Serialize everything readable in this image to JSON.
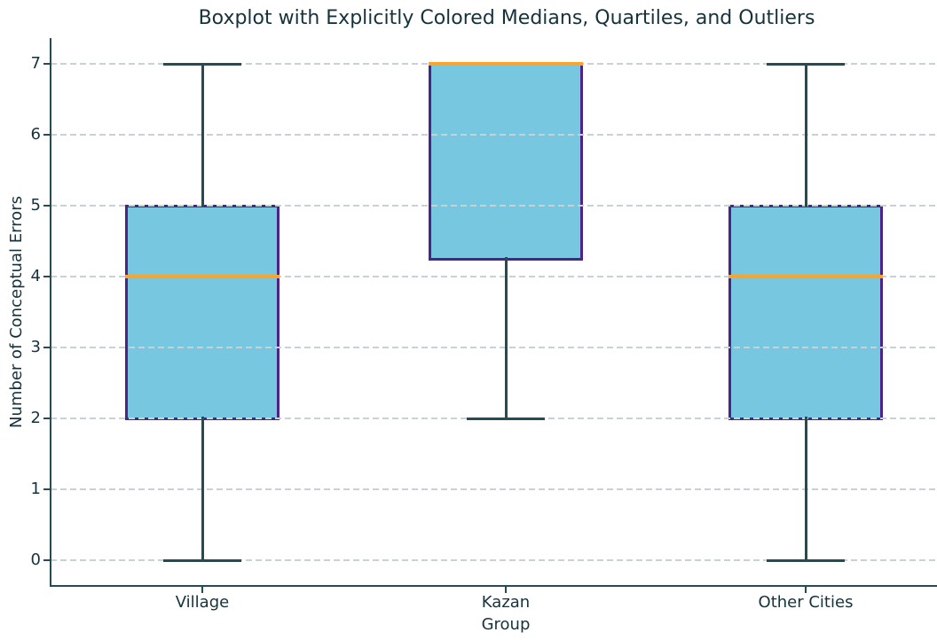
{
  "chart_data": {
    "type": "boxplot",
    "title": "Boxplot with Explicitly Colored Medians, Quartiles, and Outliers",
    "xlabel": "Group",
    "ylabel": "Number of Conceptual Errors",
    "categories": [
      "Village",
      "Kazan",
      "Other Cities"
    ],
    "yticks": [
      0,
      1,
      2,
      3,
      4,
      5,
      6,
      7
    ],
    "ylim": [
      -0.35,
      7.35
    ],
    "grid": {
      "axis": "y",
      "style": "dashed",
      "on": true
    },
    "legend": "none",
    "series": [
      {
        "group": "Village",
        "whisker_low": 0,
        "q1": 2,
        "median": 4,
        "q3": 5,
        "whisker_high": 7,
        "outliers": []
      },
      {
        "group": "Kazan",
        "whisker_low": 2,
        "q1": 4.25,
        "median": 7,
        "q3": 7,
        "whisker_high": 7,
        "outliers": []
      },
      {
        "group": "Other Cities",
        "whisker_low": 0,
        "q1": 2,
        "median": 4,
        "q3": 5,
        "whisker_high": 7,
        "outliers": []
      }
    ],
    "colors": {
      "box_fill": "#78C7E0",
      "box_edge": "#4B2389",
      "median": "#FDA428",
      "whisker": "#254B53",
      "cap": "#254B53",
      "grid": "#C6D2D4",
      "spine": "#254B53",
      "text": "#16323C",
      "background": "#FFFFFF"
    }
  }
}
